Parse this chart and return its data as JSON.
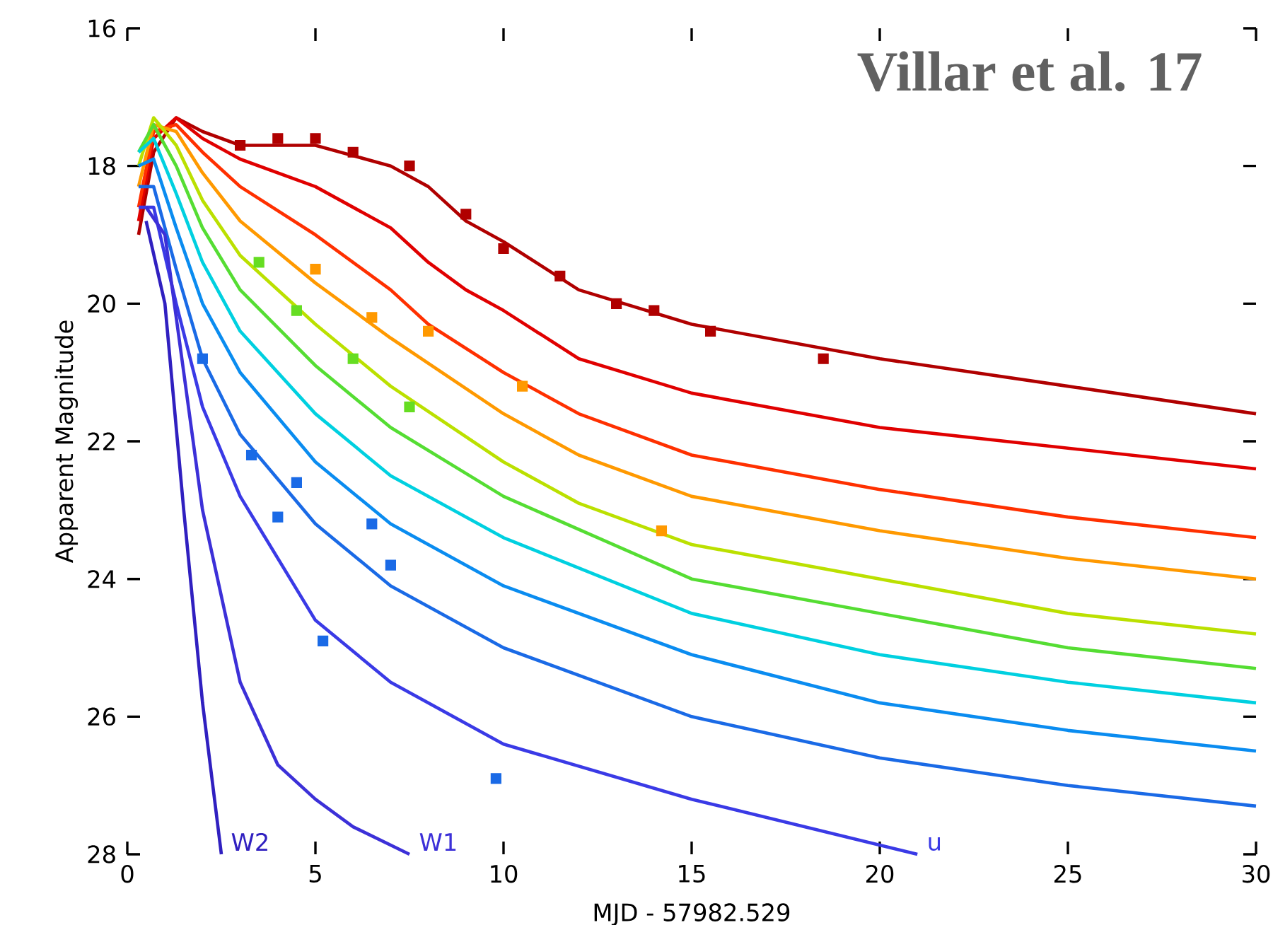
{
  "chart_data": {
    "type": "line",
    "xlabel": "MJD - 57982.529",
    "ylabel": "Apparent Magnitude",
    "annotations": [
      "Villar et al. 17"
    ],
    "xlim": [
      0,
      30
    ],
    "ylim": [
      28,
      16
    ],
    "xticks": [
      0,
      5,
      10,
      15,
      20,
      25,
      30
    ],
    "yticks": [
      16,
      18,
      20,
      22,
      24,
      26,
      28
    ],
    "marker": "none",
    "line_style": "solid",
    "series": [
      {
        "color": "#b00000",
        "x": [
          0.3,
          0.7,
          1.3,
          2,
          3,
          5,
          7,
          8,
          9,
          10,
          12,
          15,
          20,
          25,
          30
        ],
        "values": [
          19.0,
          17.8,
          17.3,
          17.5,
          17.7,
          17.7,
          18.0,
          18.3,
          18.8,
          19.1,
          19.8,
          20.3,
          20.8,
          21.2,
          21.6
        ]
      },
      {
        "color": "#e00000",
        "x": [
          0.3,
          0.7,
          1.3,
          2,
          3,
          5,
          7,
          8,
          9,
          10,
          12,
          15,
          20,
          25,
          30
        ],
        "values": [
          18.8,
          17.6,
          17.3,
          17.6,
          17.9,
          18.3,
          18.9,
          19.4,
          19.8,
          20.1,
          20.8,
          21.3,
          21.8,
          22.1,
          22.4
        ]
      },
      {
        "color": "#ff3000",
        "x": [
          0.3,
          0.7,
          1.3,
          2,
          3,
          5,
          7,
          8,
          10,
          12,
          15,
          20,
          25,
          30
        ],
        "values": [
          18.6,
          17.5,
          17.4,
          17.8,
          18.3,
          19.0,
          19.8,
          20.3,
          21.0,
          21.6,
          22.2,
          22.7,
          23.1,
          23.4
        ]
      },
      {
        "color": "#ff9900",
        "x": [
          0.3,
          0.7,
          1.3,
          2,
          3,
          5,
          7,
          10,
          12,
          15,
          20,
          25,
          30
        ],
        "values": [
          18.3,
          17.4,
          17.5,
          18.1,
          18.8,
          19.7,
          20.5,
          21.6,
          22.2,
          22.8,
          23.3,
          23.7,
          24.0
        ]
      },
      {
        "color": "#bbe000",
        "x": [
          0.3,
          0.7,
          1.3,
          2,
          3,
          5,
          7,
          10,
          12,
          15,
          20,
          25,
          30
        ],
        "values": [
          18.0,
          17.3,
          17.7,
          18.5,
          19.3,
          20.3,
          21.2,
          22.3,
          22.9,
          23.5,
          24.0,
          24.5,
          24.8
        ]
      },
      {
        "color": "#55dd33",
        "x": [
          0.3,
          0.7,
          1.3,
          2,
          3,
          5,
          7,
          10,
          15,
          20,
          25,
          30
        ],
        "values": [
          17.8,
          17.4,
          18.0,
          18.9,
          19.8,
          20.9,
          21.8,
          22.8,
          24.0,
          24.5,
          25.0,
          25.3
        ]
      },
      {
        "color": "#00d0e0",
        "x": [
          0.3,
          0.7,
          1.3,
          2,
          3,
          5,
          7,
          10,
          15,
          20,
          25,
          30
        ],
        "values": [
          17.8,
          17.6,
          18.4,
          19.4,
          20.4,
          21.6,
          22.5,
          23.4,
          24.5,
          25.1,
          25.5,
          25.8
        ]
      },
      {
        "color": "#0a8cf0",
        "x": [
          0.3,
          0.7,
          1.3,
          2,
          3,
          5,
          7,
          10,
          15,
          20,
          25,
          30
        ],
        "values": [
          18.0,
          17.9,
          18.9,
          20.0,
          21.0,
          22.3,
          23.2,
          24.1,
          25.1,
          25.8,
          26.2,
          26.5
        ]
      },
      {
        "color": "#1a6ae6",
        "x": [
          0.3,
          0.7,
          1.3,
          2,
          3,
          5,
          7,
          10,
          15,
          20,
          25,
          30
        ],
        "values": [
          18.3,
          18.3,
          19.5,
          20.8,
          21.9,
          23.2,
          24.1,
          25.0,
          26.0,
          26.6,
          27.0,
          27.3
        ]
      },
      {
        "name": "u",
        "color": "#3a3ae6",
        "x": [
          0.3,
          0.7,
          1.3,
          2,
          3,
          5,
          7,
          10,
          15,
          21
        ],
        "values": [
          18.6,
          18.6,
          20.0,
          21.5,
          22.8,
          24.6,
          25.5,
          26.4,
          27.2,
          28.0
        ]
      },
      {
        "name": "W1",
        "color": "#3c30d8",
        "x": [
          0.5,
          1,
          1.5,
          2,
          3,
          4,
          5,
          6,
          7.5
        ],
        "values": [
          18.6,
          19.0,
          21.0,
          23.0,
          25.5,
          26.7,
          27.2,
          27.6,
          28.0
        ]
      },
      {
        "name": "W2",
        "color": "#3020c0",
        "x": [
          0.5,
          1,
          1.5,
          2,
          2.5
        ],
        "values": [
          18.8,
          20.0,
          23.0,
          25.8,
          28.0
        ]
      },
      {
        "type": "scatter",
        "marker": "square",
        "color": "#b00000",
        "x": [
          3,
          4,
          5,
          6,
          7.5,
          9,
          10,
          11.5,
          13,
          14,
          15.5,
          18.5
        ],
        "values": [
          17.7,
          17.6,
          17.6,
          17.8,
          18.0,
          18.7,
          19.2,
          19.6,
          20.0,
          20.1,
          20.4,
          20.8
        ]
      },
      {
        "type": "scatter",
        "marker": "square",
        "color": "#ff9900",
        "x": [
          5,
          6.5,
          8,
          10.5,
          14.2
        ],
        "values": [
          19.5,
          20.2,
          20.4,
          21.2,
          23.3
        ]
      },
      {
        "type": "scatter",
        "marker": "square",
        "color": "#66dd22",
        "x": [
          3.5,
          4.5,
          6,
          7.5
        ],
        "values": [
          19.4,
          20.1,
          20.8,
          21.5
        ]
      },
      {
        "type": "scatter",
        "marker": "square",
        "color": "#1a6ae6",
        "x": [
          2,
          3.3,
          4,
          4.5,
          5.2,
          6.5,
          7,
          9.8
        ],
        "values": [
          20.8,
          22.2,
          23.1,
          22.6,
          24.9,
          23.2,
          23.8,
          26.9
        ]
      }
    ]
  }
}
